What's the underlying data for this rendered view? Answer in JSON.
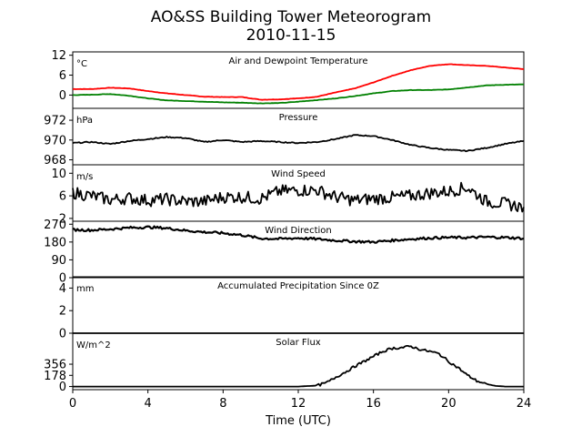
{
  "figure": {
    "title_line1": "AO&SS Building Tower Meteorogram",
    "title_line2": "2010-11-15",
    "xlabel": "Time (UTC)",
    "x_ticks": [
      0,
      4,
      8,
      12,
      16,
      20,
      24
    ],
    "xlim": [
      0,
      24
    ]
  },
  "chart_data": [
    {
      "type": "line",
      "title": "Air and Dewpoint Temperature",
      "unit": "°C",
      "ylim": [
        -4,
        13
      ],
      "y_ticks": [
        0,
        6,
        12
      ],
      "series": [
        {
          "color": "#ff0000",
          "x": [
            0,
            1,
            2,
            3,
            4,
            5,
            6,
            7,
            8,
            9,
            10,
            11,
            12,
            13,
            14,
            15,
            16,
            17,
            18,
            19,
            20,
            21,
            22,
            23,
            24
          ],
          "y": [
            1.8,
            1.8,
            2.2,
            2.0,
            1.2,
            0.5,
            0.0,
            -0.5,
            -0.6,
            -0.6,
            -1.4,
            -1.3,
            -1.0,
            -0.5,
            0.8,
            2.0,
            3.8,
            5.8,
            7.5,
            8.8,
            9.3,
            9.0,
            8.8,
            8.3,
            7.8
          ]
        },
        {
          "color": "#008000",
          "x": [
            0,
            1,
            2,
            3,
            4,
            5,
            6,
            7,
            8,
            9,
            10,
            11,
            12,
            13,
            14,
            15,
            16,
            17,
            18,
            19,
            20,
            21,
            22,
            23,
            24
          ],
          "y": [
            0.0,
            0.1,
            0.3,
            -0.2,
            -1.0,
            -1.6,
            -1.8,
            -2.0,
            -2.2,
            -2.3,
            -2.5,
            -2.4,
            -2.0,
            -1.5,
            -1.0,
            -0.3,
            0.5,
            1.2,
            1.5,
            1.5,
            1.7,
            2.3,
            2.9,
            3.1,
            3.2
          ]
        }
      ]
    },
    {
      "type": "line",
      "title": "Pressure",
      "unit": "hPa",
      "ylim": [
        967.5,
        973.2
      ],
      "y_ticks": [
        968,
        970,
        972
      ],
      "series": [
        {
          "color": "#000000",
          "x": [
            0,
            1,
            2,
            3,
            4,
            5,
            6,
            7,
            8,
            9,
            10,
            11,
            12,
            13,
            14,
            15,
            16,
            17,
            18,
            19,
            20,
            21,
            22,
            23,
            24
          ],
          "y": [
            969.7,
            969.8,
            969.6,
            969.9,
            970.1,
            970.3,
            970.2,
            969.8,
            970.0,
            969.8,
            969.9,
            969.8,
            969.7,
            969.8,
            970.1,
            970.5,
            970.4,
            970.0,
            969.5,
            969.2,
            969.0,
            968.9,
            969.2,
            969.6,
            969.9
          ]
        }
      ]
    },
    {
      "type": "line",
      "title": "Wind Speed",
      "unit": "m/s",
      "ylim": [
        1.5,
        11.5
      ],
      "y_ticks": [
        2,
        6,
        10
      ],
      "series": [
        {
          "color": "#000000",
          "x": [
            0,
            1,
            2,
            3,
            4,
            5,
            6,
            7,
            8,
            9,
            10,
            11,
            12,
            13,
            14,
            15,
            16,
            17,
            18,
            19,
            20,
            21,
            22,
            23,
            24
          ],
          "y": [
            6.6,
            6.0,
            5.3,
            5.6,
            5.2,
            5.4,
            5.0,
            5.0,
            5.8,
            5.8,
            5.5,
            6.8,
            7.0,
            7.0,
            5.8,
            5.2,
            5.5,
            5.7,
            6.0,
            6.5,
            6.8,
            7.5,
            5.0,
            4.6,
            4.0
          ]
        }
      ]
    },
    {
      "type": "line",
      "title": "Wind Direction",
      "unit": "",
      "ylim": [
        0,
        285
      ],
      "y_ticks": [
        0,
        90,
        180,
        270
      ],
      "series": [
        {
          "color": "#000000",
          "x": [
            0,
            1,
            2,
            3,
            4,
            5,
            6,
            7,
            8,
            9,
            10,
            11,
            12,
            13,
            14,
            15,
            16,
            17,
            18,
            19,
            20,
            21,
            22,
            23,
            24
          ],
          "y": [
            242,
            240,
            245,
            252,
            255,
            250,
            238,
            230,
            225,
            215,
            198,
            196,
            200,
            195,
            188,
            183,
            180,
            188,
            195,
            200,
            203,
            202,
            205,
            203,
            198
          ]
        }
      ]
    },
    {
      "type": "line",
      "title": "Accumulated Precipitation Since 0Z",
      "unit": "mm",
      "ylim": [
        0,
        5
      ],
      "y_ticks": [
        0,
        2,
        4
      ],
      "series": [
        {
          "color": "#000000",
          "x": [
            0,
            24
          ],
          "y": [
            0,
            0
          ]
        }
      ]
    },
    {
      "type": "line",
      "title": "Solar Flux",
      "unit": "W/m^2",
      "ylim": [
        -50,
        850
      ],
      "y_ticks": [
        0,
        178,
        356
      ],
      "series": [
        {
          "color": "#000000",
          "x": [
            0,
            12,
            13,
            13.5,
            14,
            14.5,
            15,
            15.5,
            16,
            16.5,
            17,
            17.5,
            18,
            18.5,
            19,
            19.5,
            20,
            20.5,
            21,
            21.5,
            22,
            22.5,
            23,
            24
          ],
          "y": [
            0,
            0,
            15,
            60,
            150,
            230,
            320,
            400,
            480,
            560,
            610,
            620,
            640,
            590,
            560,
            520,
            400,
            300,
            180,
            90,
            40,
            10,
            0,
            0
          ]
        }
      ]
    }
  ]
}
